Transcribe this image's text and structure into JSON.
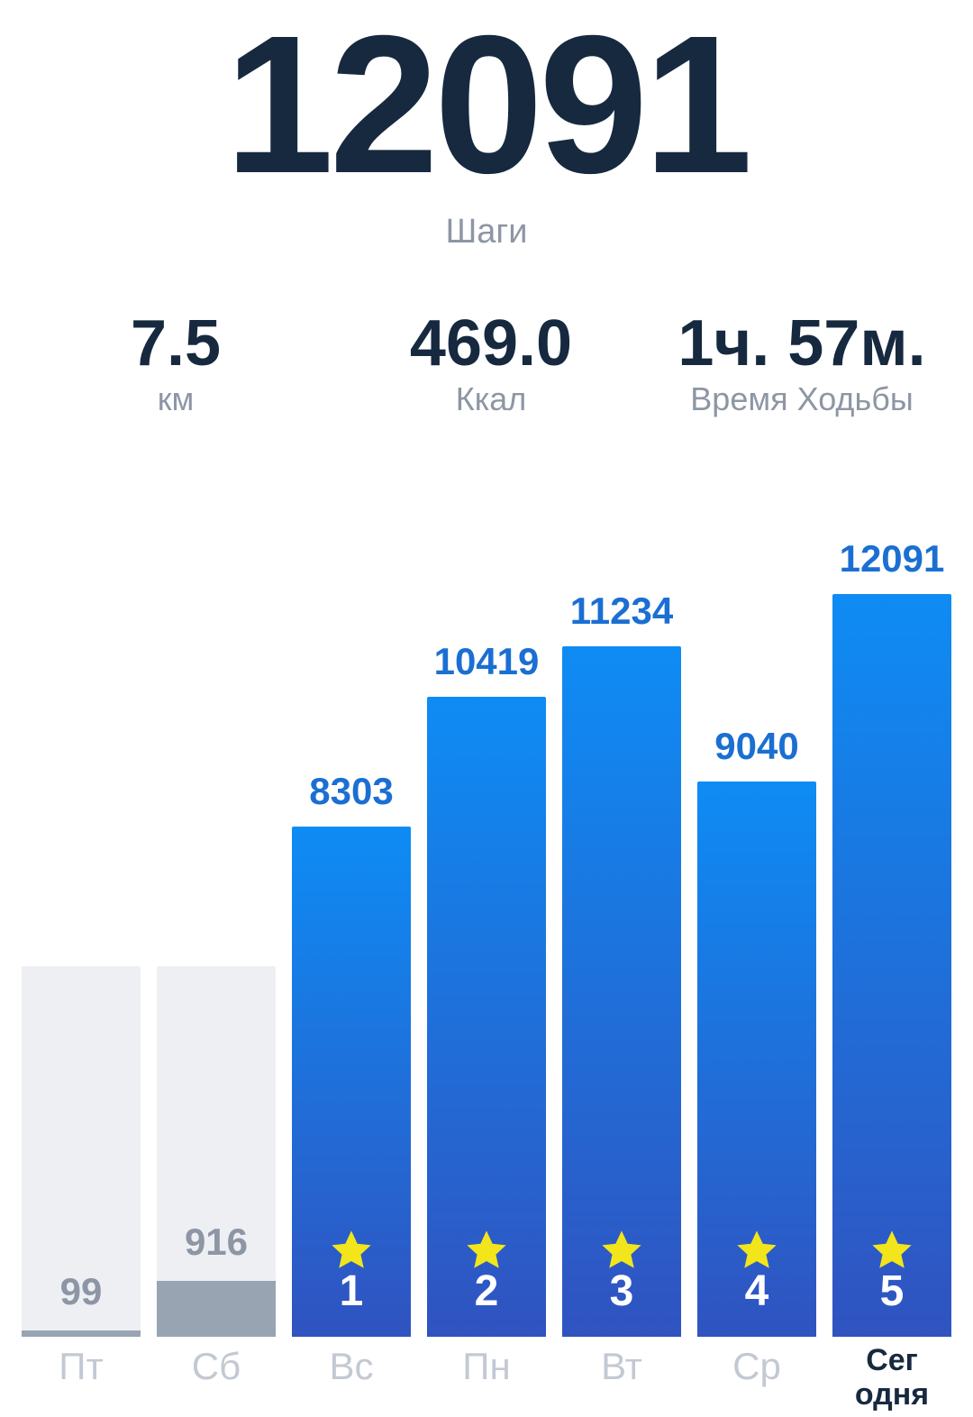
{
  "header": {
    "steps_value": "12091",
    "steps_label": "Шаги"
  },
  "stats": [
    {
      "value": "7.5",
      "label": "км"
    },
    {
      "value": "469.0",
      "label": "Ккал"
    },
    {
      "value": "1ч. 57м.",
      "label": "Время Ходьбы"
    }
  ],
  "chart_data": {
    "type": "bar",
    "title": "",
    "xlabel": "",
    "ylabel": "",
    "categories": [
      "Пт",
      "Сб",
      "Вс",
      "Пн",
      "Вт",
      "Ср",
      "Сегодня"
    ],
    "values": [
      99,
      916,
      8303,
      10419,
      11234,
      9040,
      12091
    ],
    "value_labels": [
      "99",
      "916",
      "8303",
      "10419",
      "11234",
      "9040",
      "12091"
    ],
    "bar_styles": [
      "inactive",
      "inactive",
      "active",
      "active",
      "active",
      "active",
      "active"
    ],
    "streak_badges": [
      "",
      "",
      "1",
      "2",
      "3",
      "4",
      "5"
    ],
    "star_on_bars": [
      false,
      false,
      true,
      true,
      true,
      true,
      true
    ],
    "today_label_lines": [
      "Сег",
      "одня"
    ],
    "ylim": [
      0,
      12091
    ],
    "grid": false,
    "legend_position": "none"
  },
  "icons": {
    "star": "star-icon"
  },
  "colors": {
    "navy": "#16293f",
    "gray_label": "#8d96a4",
    "blue_label": "#1b6fd2",
    "bar_top": "#0e8cf4",
    "bar_bottom": "#3053c0",
    "star": "#f3e51c",
    "track": "#edeff3",
    "track_fill": "#99a4b3",
    "day_label": "#c3c9d3"
  }
}
